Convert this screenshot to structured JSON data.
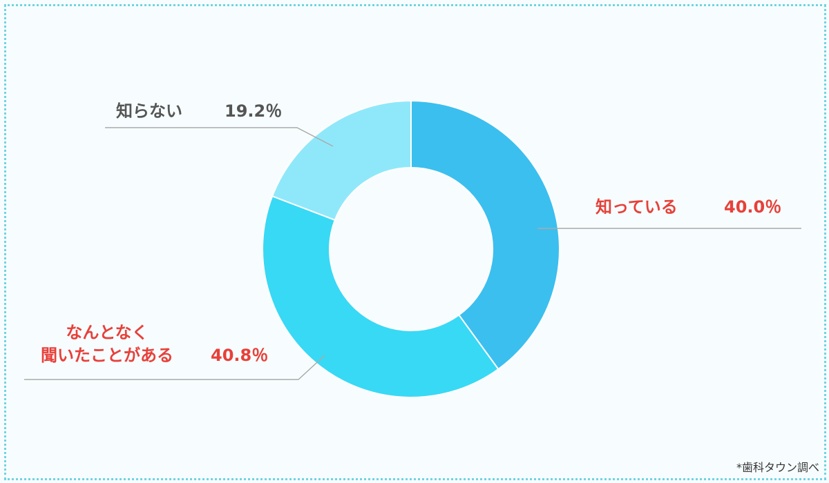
{
  "chart_data": {
    "type": "donut",
    "categories": [
      "知っている",
      "なんとなく\n聞いたことがある",
      "知らない"
    ],
    "values": [
      40.0,
      40.8,
      19.2
    ],
    "value_labels": [
      "40.0％",
      "40.8％",
      "19.2％"
    ],
    "colors": [
      "#3bbfef",
      "#38d9f5",
      "#8fe8fa"
    ],
    "label_colors": [
      "#e8403a",
      "#e8403a",
      "#555555"
    ],
    "source": "*歯科タウン調べ"
  }
}
